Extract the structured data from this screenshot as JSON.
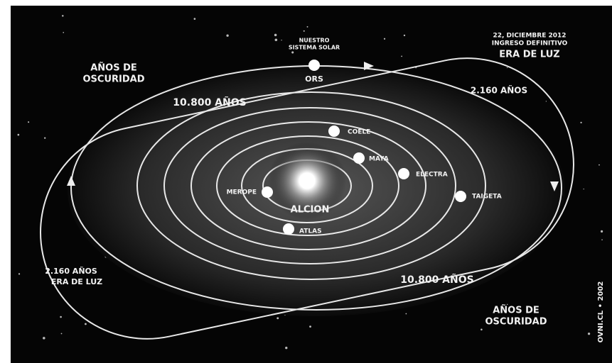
{
  "header": {
    "date": "22, DICIEMBRE 2012",
    "subtitle": "INGRESO DEFINITIVO",
    "era": "ERA DE LUZ"
  },
  "solar_system": {
    "caption_lines": [
      "NUESTRO",
      "SISTEMA SOLAR"
    ],
    "label": "ORS"
  },
  "sun": "ALCION",
  "stars": [
    "COELE",
    "MAYA",
    "ELECTRA",
    "MEROPE",
    "TAIGETA",
    "ATLAS"
  ],
  "regions": [
    {
      "lines": [
        "AÑOS DE",
        "OSCURIDAD"
      ]
    },
    {
      "lines": [
        "10.800 AÑOS"
      ]
    },
    {
      "lines": [
        "2.160 AÑOS"
      ]
    },
    {
      "lines": [
        "2.160 AÑOS",
        "ERA DE LUZ"
      ]
    },
    {
      "lines": [
        "10.800 AÑOS"
      ]
    },
    {
      "lines": [
        "AÑOS DE",
        "OSCURIDAD"
      ]
    }
  ],
  "credit": "OVNI.CL • 2002"
}
